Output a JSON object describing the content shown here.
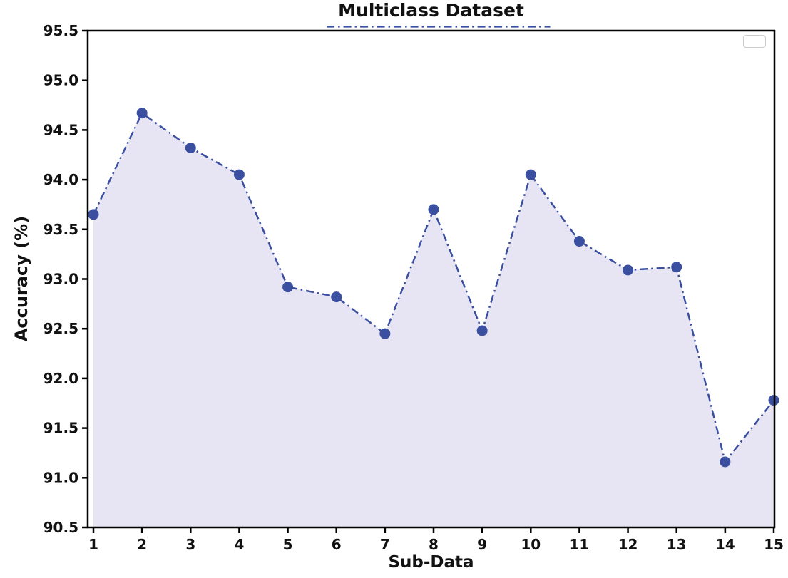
{
  "chart_data": {
    "type": "line",
    "title": "Multiclass Dataset",
    "xlabel": "Sub-Data",
    "ylabel": "Accuracy (%)",
    "x": [
      1,
      2,
      3,
      4,
      5,
      6,
      7,
      8,
      9,
      10,
      11,
      12,
      13,
      14,
      15
    ],
    "values": [
      93.65,
      94.67,
      94.32,
      94.05,
      92.92,
      92.82,
      92.45,
      93.7,
      92.48,
      94.05,
      93.38,
      93.09,
      93.12,
      91.16,
      91.78
    ],
    "series_name": "",
    "xlim": [
      1,
      15
    ],
    "ylim": [
      90.5,
      95.5
    ],
    "xticks": [
      1,
      2,
      3,
      4,
      5,
      6,
      7,
      8,
      9,
      10,
      11,
      12,
      13,
      14,
      15
    ],
    "xtick_labels": [
      "1",
      "2",
      "3",
      "4",
      "5",
      "6",
      "7",
      "8",
      "9",
      "10",
      "11",
      "12",
      "13",
      "14",
      "15"
    ],
    "yticks": [
      90.5,
      91.0,
      91.5,
      92.0,
      92.5,
      93.0,
      93.5,
      94.0,
      94.5,
      95.0,
      95.5
    ],
    "ytick_labels": [
      "90.5",
      "91.0",
      "91.5",
      "92.0",
      "92.5",
      "93.0",
      "93.5",
      "94.0",
      "94.5",
      "95.0",
      "95.5"
    ],
    "line_color": "#3a4f9f",
    "marker": "circle",
    "marker_radius": 7.5,
    "line_style": "dash-dot",
    "line_width": 2.5,
    "fill_under_line": true,
    "fill_color": "#e7e5f3",
    "grid": false,
    "legend": {
      "visible": true,
      "entries": [],
      "position": "upper-right"
    },
    "extra_dash_segment": {
      "x_from": 5.8,
      "x_to": 10.4,
      "y": 95.54
    }
  }
}
